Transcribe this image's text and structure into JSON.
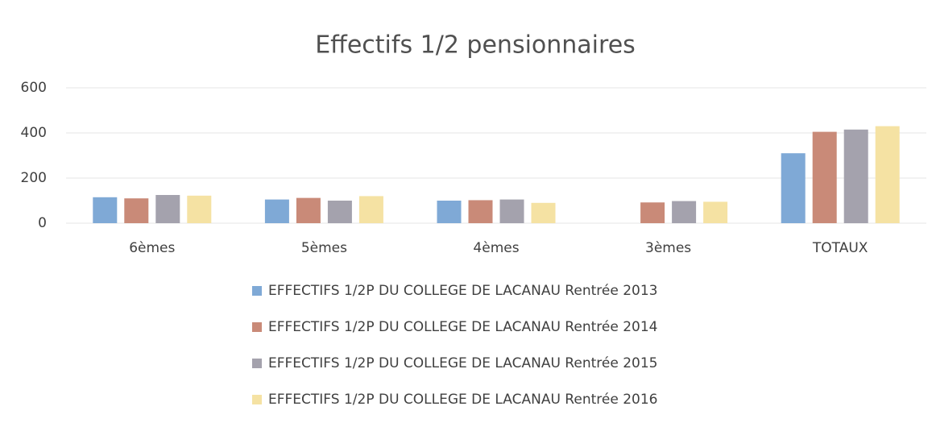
{
  "chart_data": {
    "type": "bar",
    "title": "Effectifs 1/2 pensionnaires",
    "categories": [
      "6èmes",
      "5èmes",
      "4èmes",
      "3èmes",
      "TOTAUX"
    ],
    "series": [
      {
        "name": "EFFECTIFS 1/2P DU COLLEGE DE LACANAU Rentrée 2013",
        "color": "#7fa9d6",
        "values": [
          115,
          105,
          100,
          null,
          310
        ]
      },
      {
        "name": "EFFECTIFS 1/2P DU COLLEGE DE LACANAU Rentrée 2014",
        "color": "#c98a78",
        "values": [
          110,
          112,
          102,
          92,
          405
        ]
      },
      {
        "name": "EFFECTIFS 1/2P DU COLLEGE DE LACANAU Rentrée 2015",
        "color": "#a4a2ad",
        "values": [
          125,
          100,
          105,
          98,
          415
        ]
      },
      {
        "name": "EFFECTIFS 1/2P DU COLLEGE DE LACANAU Rentrée 2016",
        "color": "#f5e2a3",
        "values": [
          122,
          120,
          90,
          95,
          430
        ]
      }
    ],
    "ylim": [
      0,
      600
    ],
    "yticks": [
      0,
      200,
      400,
      600
    ],
    "grid": true,
    "legend": "bottom"
  }
}
